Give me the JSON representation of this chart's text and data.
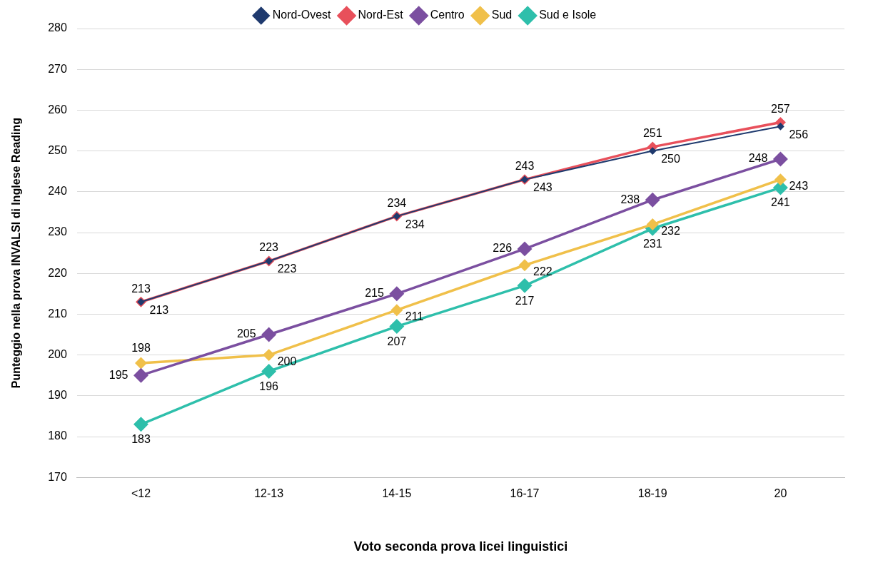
{
  "chart_data": {
    "type": "line",
    "xlabel": "Voto seconda prova licei linguistici",
    "ylabel": "Punteggio nella prova INVALSI di Inglese Reading",
    "categories": [
      "<12",
      "12-13",
      "14-15",
      "16-17",
      "18-19",
      "20"
    ],
    "series": [
      {
        "name": "Nord-Ovest",
        "color": "#1f3a6e",
        "values": [
          213,
          223,
          234,
          243,
          250,
          256
        ]
      },
      {
        "name": "Nord-Est",
        "color": "#e8505b",
        "values": [
          213,
          223,
          234,
          243,
          251,
          257
        ]
      },
      {
        "name": "Centro",
        "color": "#7b4fa0",
        "values": [
          195,
          205,
          215,
          226,
          238,
          248
        ]
      },
      {
        "name": "Sud",
        "color": "#f0c04a",
        "values": [
          198,
          200,
          211,
          222,
          232,
          243
        ]
      },
      {
        "name": "Sud e Isole",
        "color": "#2ebfab",
        "values": [
          183,
          196,
          207,
          217,
          231,
          241
        ]
      }
    ],
    "ylim": [
      170,
      280
    ],
    "yticks": [
      170,
      180,
      190,
      200,
      210,
      220,
      230,
      240,
      250,
      260,
      270,
      280
    ],
    "grid": "y",
    "legend": "top",
    "marker": "diamond",
    "line_style": "solid",
    "data_labels": true
  }
}
